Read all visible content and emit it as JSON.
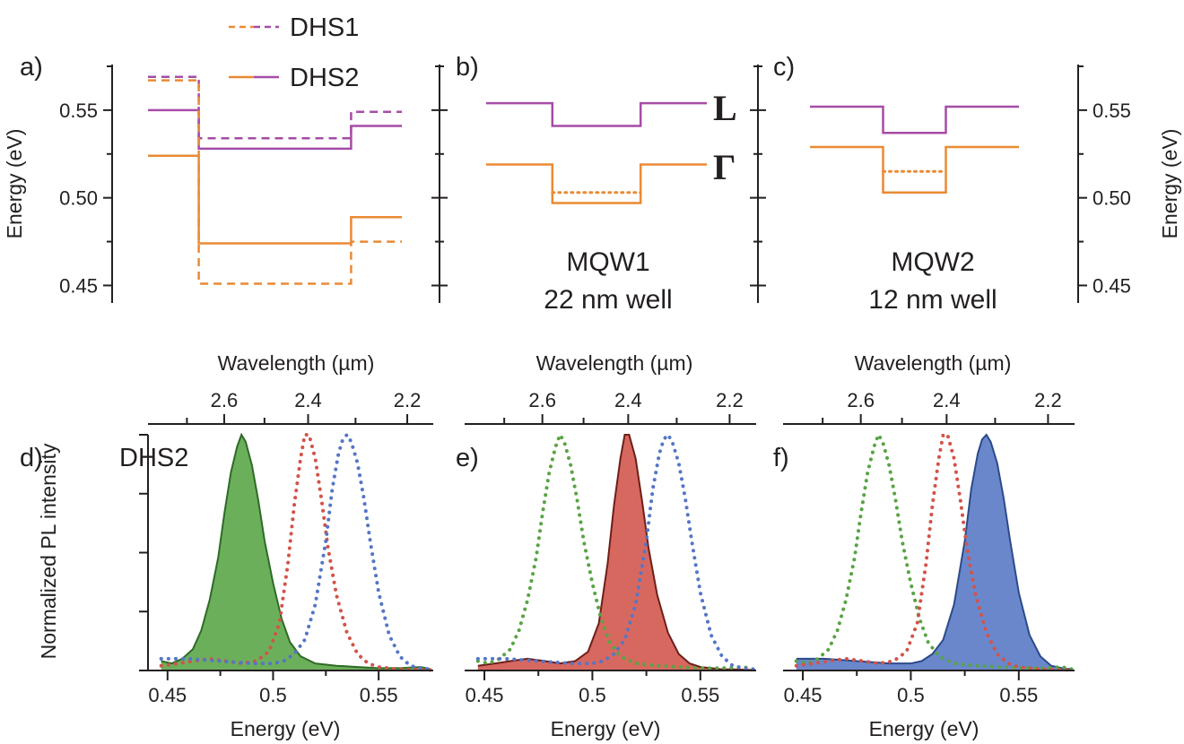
{
  "legend": {
    "items": [
      {
        "label": "DHS1",
        "style": "dashed"
      },
      {
        "label": "DHS2",
        "style": "solid"
      }
    ]
  },
  "colors": {
    "L_band": "#a64ca6",
    "gamma_band": "#ea8a34",
    "green": "#58a444",
    "red": "#d25349",
    "blue": "#5576c5"
  },
  "chart_data": [
    {
      "id": "a",
      "type": "line",
      "panel_label": "a)",
      "ylabel": "Energy (eV)",
      "ylim": [
        0.44,
        0.575
      ],
      "yticks": [
        0.45,
        0.5,
        0.55
      ],
      "ytick_labels": [
        "0.45",
        "0.50",
        "0.55"
      ],
      "ytick_minor": [
        0.475,
        0.525
      ],
      "series": [
        {
          "band": "L",
          "sample": "DHS1",
          "style": "dashed",
          "segments": [
            [
              0,
              0.2,
              0.569
            ],
            [
              0.2,
              0.8,
              0.534
            ],
            [
              0.8,
              1,
              0.549
            ]
          ]
        },
        {
          "band": "L",
          "sample": "DHS2",
          "style": "solid",
          "segments": [
            [
              0,
              0.2,
              0.55
            ],
            [
              0.2,
              0.8,
              0.528
            ],
            [
              0.8,
              1,
              0.541
            ]
          ]
        },
        {
          "band": "Gamma",
          "sample": "DHS1",
          "style": "dashed",
          "segments": [
            [
              0,
              0.2,
              0.567
            ],
            [
              0.2,
              0.8,
              0.451
            ],
            [
              0.8,
              1,
              0.475
            ]
          ]
        },
        {
          "band": "Gamma",
          "sample": "DHS2",
          "style": "solid",
          "segments": [
            [
              0,
              0.2,
              0.524
            ],
            [
              0.2,
              0.8,
              0.474
            ],
            [
              0.8,
              1,
              0.489
            ]
          ]
        }
      ]
    },
    {
      "id": "b",
      "type": "line",
      "panel_label": "b)",
      "caption": [
        "MQW1",
        "22 nm well"
      ],
      "band_labels": {
        "L": "L",
        "Gamma": "Γ"
      },
      "series": [
        {
          "band": "L",
          "style": "solid",
          "segments": [
            [
              0,
              0.3,
              0.554
            ],
            [
              0.3,
              0.7,
              0.541
            ],
            [
              0.7,
              1,
              0.554
            ]
          ]
        },
        {
          "band": "Gamma",
          "style": "solid",
          "segments": [
            [
              0,
              0.3,
              0.519
            ],
            [
              0.3,
              0.7,
              0.497
            ],
            [
              0.7,
              1,
              0.519
            ]
          ]
        },
        {
          "band": "Gamma",
          "style": "dotted",
          "segments": [
            [
              0.3,
              0.7,
              0.503
            ]
          ]
        }
      ]
    },
    {
      "id": "c",
      "type": "line",
      "panel_label": "c)",
      "caption": [
        "MQW2",
        "12 nm well"
      ],
      "ylabel": "Energy (eV)",
      "yticks": [
        0.45,
        0.5,
        0.55
      ],
      "ytick_labels": [
        "0.45",
        "0.50",
        "0.55"
      ],
      "series": [
        {
          "band": "L",
          "style": "solid",
          "segments": [
            [
              0,
              0.35,
              0.552
            ],
            [
              0.35,
              0.65,
              0.537
            ],
            [
              0.65,
              1,
              0.552
            ]
          ]
        },
        {
          "band": "Gamma",
          "style": "solid",
          "segments": [
            [
              0,
              0.35,
              0.529
            ],
            [
              0.35,
              0.65,
              0.503
            ],
            [
              0.65,
              1,
              0.529
            ]
          ]
        },
        {
          "band": "Gamma",
          "style": "dotted",
          "segments": [
            [
              0.35,
              0.65,
              0.515
            ]
          ]
        }
      ]
    },
    {
      "id": "d",
      "type": "area",
      "panel_label": "d)",
      "inner_label": "DHS2",
      "filled_series": "green",
      "xlabel": "Energy (eV)",
      "ylabel": "Normalized PL intensity",
      "top_xlabel": "Wavelength (µm)",
      "xlim": [
        0.445,
        0.575
      ],
      "xticks": [
        0.45,
        0.5,
        0.55
      ],
      "xtick_labels": [
        "0.45",
        "0.5",
        "0.55"
      ],
      "top_ticks_um": [
        2.7,
        2.6,
        2.5,
        2.4,
        2.3,
        2.2,
        2.1
      ],
      "top_tick_labels": {
        "2.6": "2.6",
        "2.4": "2.4",
        "2.2": "2.2"
      },
      "ylim": [
        0,
        1
      ]
    },
    {
      "id": "e",
      "type": "area",
      "panel_label": "e)",
      "filled_series": "red",
      "xlabel": "Energy (eV)",
      "top_xlabel": "Wavelength (µm)",
      "xlim": [
        0.445,
        0.575
      ],
      "xticks": [
        0.45,
        0.5,
        0.55
      ],
      "xtick_labels": [
        "0.45",
        "0.5",
        "0.55"
      ],
      "top_ticks_um": [
        2.7,
        2.6,
        2.5,
        2.4,
        2.3,
        2.2,
        2.1
      ],
      "top_tick_labels": {
        "2.6": "2.6",
        "2.4": "2.4",
        "2.2": "2.2"
      },
      "ylim": [
        0,
        1
      ]
    },
    {
      "id": "f",
      "type": "area",
      "panel_label": "f)",
      "filled_series": "blue",
      "xlabel": "Energy (eV)",
      "top_xlabel": "Wavelength (µm)",
      "xlim": [
        0.445,
        0.575
      ],
      "xticks": [
        0.45,
        0.5,
        0.55
      ],
      "xtick_labels": [
        "0.45",
        "0.5",
        "0.55"
      ],
      "top_ticks_um": [
        2.7,
        2.6,
        2.5,
        2.4,
        2.3,
        2.2,
        2.1
      ],
      "top_tick_labels": {
        "2.6": "2.6",
        "2.4": "2.4",
        "2.2": "2.2"
      },
      "ylim": [
        0,
        1
      ]
    }
  ],
  "pl_spectra": {
    "green": {
      "x": [
        0.447,
        0.452,
        0.457,
        0.462,
        0.466,
        0.47,
        0.474,
        0.477,
        0.48,
        0.483,
        0.485,
        0.487,
        0.49,
        0.493,
        0.496,
        0.5,
        0.504,
        0.508,
        0.513,
        0.52,
        0.53,
        0.54,
        0.55,
        0.56,
        0.57,
        0.575
      ],
      "y": [
        0.04,
        0.03,
        0.05,
        0.09,
        0.17,
        0.3,
        0.48,
        0.67,
        0.84,
        0.95,
        1.0,
        0.97,
        0.87,
        0.72,
        0.55,
        0.37,
        0.22,
        0.12,
        0.06,
        0.03,
        0.02,
        0.015,
        0.01,
        0.01,
        0.015,
        0.005
      ]
    },
    "red": {
      "x": [
        0.447,
        0.455,
        0.462,
        0.47,
        0.478,
        0.485,
        0.492,
        0.498,
        0.503,
        0.507,
        0.51,
        0.513,
        0.515,
        0.517,
        0.52,
        0.523,
        0.526,
        0.53,
        0.535,
        0.54,
        0.545,
        0.55,
        0.555,
        0.56,
        0.565,
        0.575
      ],
      "y": [
        0.02,
        0.03,
        0.04,
        0.05,
        0.04,
        0.03,
        0.04,
        0.08,
        0.2,
        0.45,
        0.7,
        0.9,
        1.0,
        1.0,
        0.9,
        0.72,
        0.52,
        0.32,
        0.16,
        0.07,
        0.03,
        0.015,
        0.01,
        0.005,
        0.005,
        0.002
      ]
    },
    "blue": {
      "x": [
        0.447,
        0.46,
        0.475,
        0.49,
        0.5,
        0.505,
        0.51,
        0.515,
        0.52,
        0.525,
        0.528,
        0.531,
        0.533,
        0.535,
        0.537,
        0.54,
        0.543,
        0.546,
        0.55,
        0.555,
        0.56,
        0.565,
        0.57,
        0.575
      ],
      "y": [
        0.05,
        0.05,
        0.04,
        0.03,
        0.03,
        0.04,
        0.07,
        0.13,
        0.28,
        0.55,
        0.77,
        0.92,
        0.98,
        1.0,
        0.97,
        0.88,
        0.73,
        0.55,
        0.33,
        0.15,
        0.06,
        0.02,
        0.01,
        0.005
      ]
    }
  }
}
